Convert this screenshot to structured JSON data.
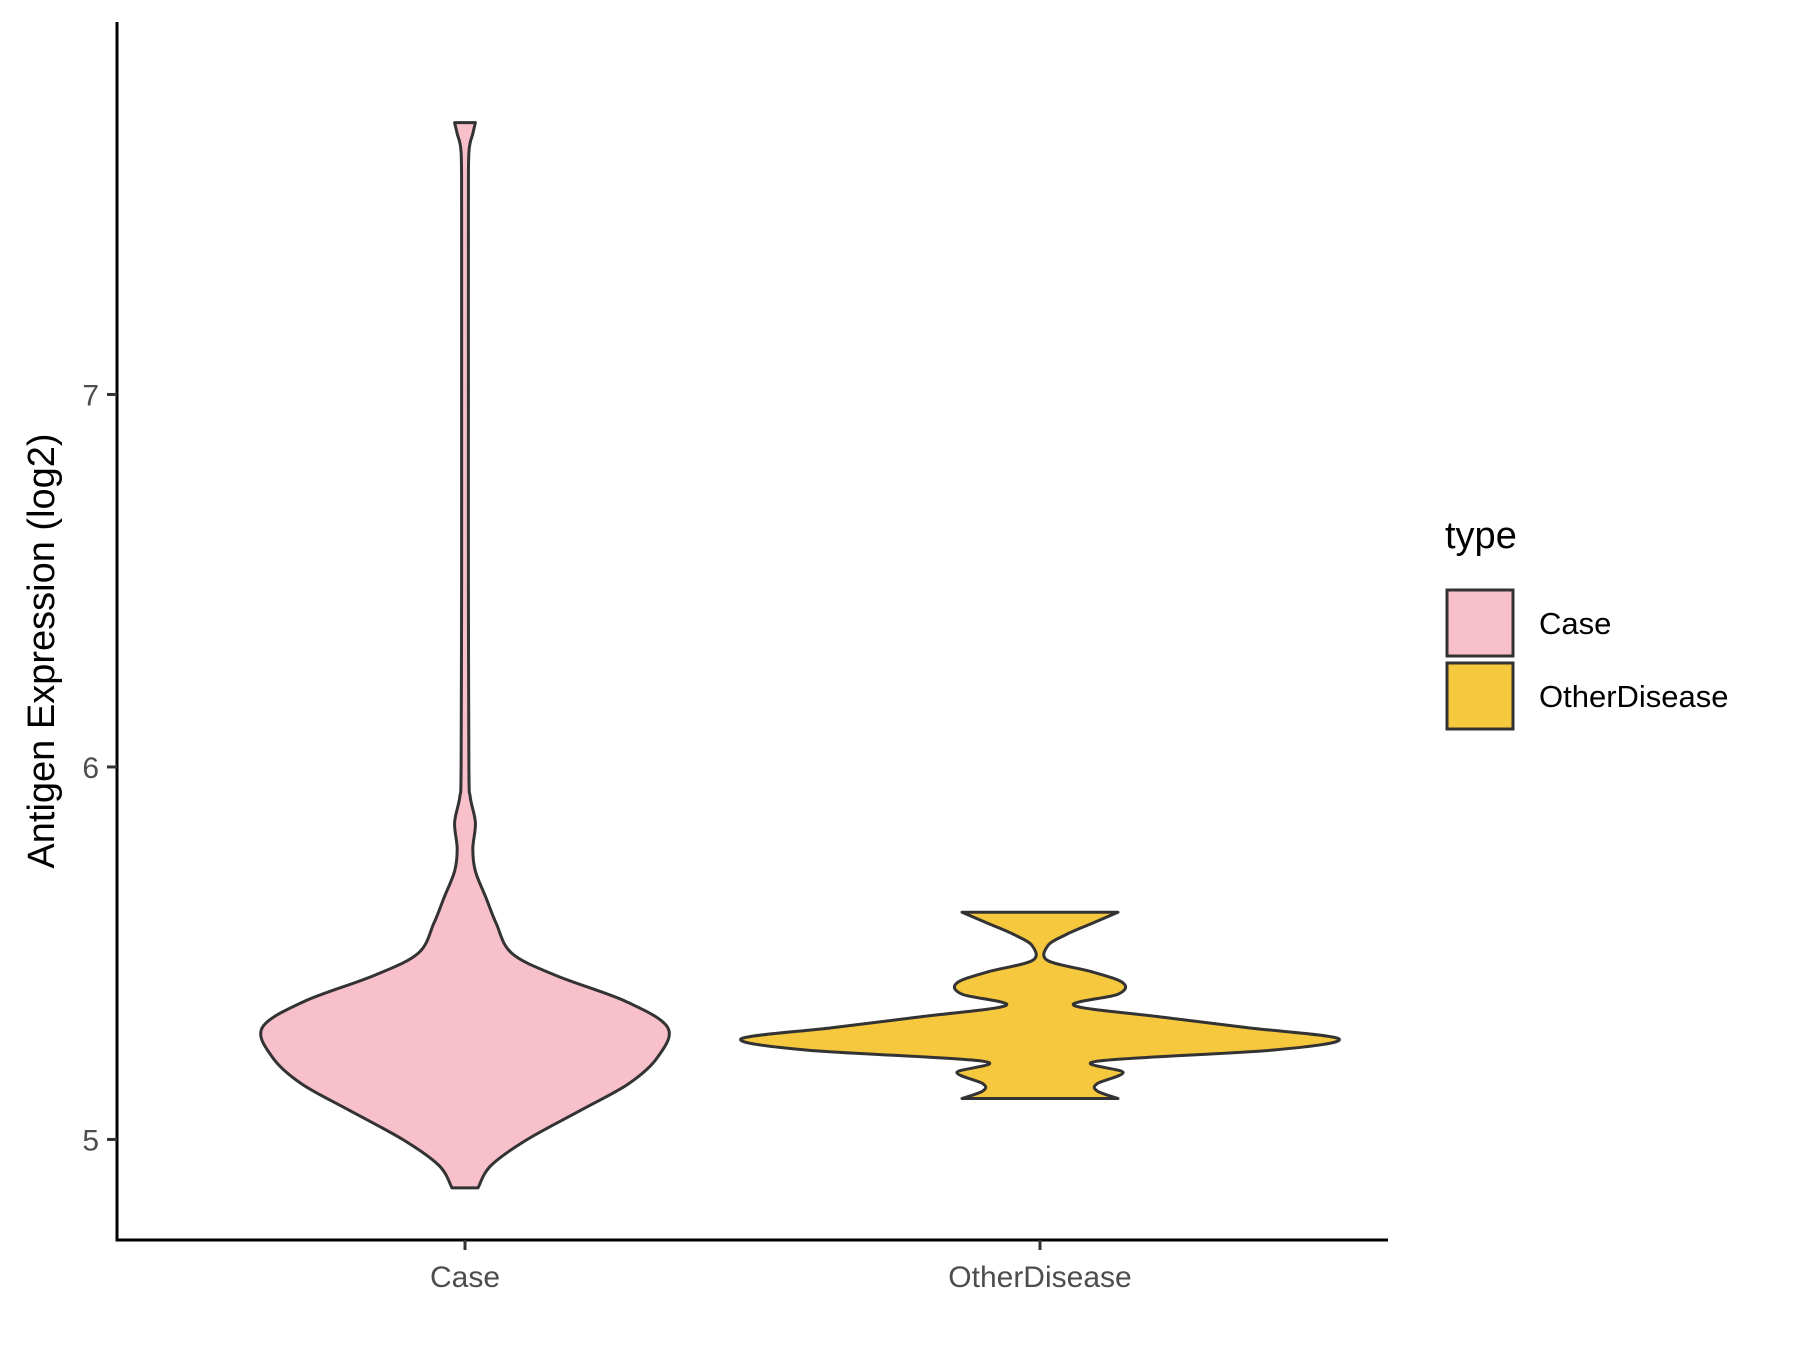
{
  "chart_data": {
    "type": "violin",
    "title": "",
    "xlabel": "",
    "ylabel": "Antigen Expression (log2)",
    "ylim": [
      4.73,
      8.0
    ],
    "yticks": [
      5,
      6,
      7
    ],
    "categories": [
      "Case",
      "OtherDisease"
    ],
    "colors": {
      "Case": "#f8c0cb",
      "OtherDisease": "#f6c83e",
      "outline": "#333333"
    },
    "legend": {
      "title": "type",
      "position": "right",
      "entries": [
        "Case",
        "OtherDisease"
      ]
    },
    "series": [
      {
        "category": "Case",
        "min": 4.87,
        "max": 7.73,
        "density": [
          [
            4.87,
            0.05
          ],
          [
            4.93,
            0.1
          ],
          [
            5.0,
            0.24
          ],
          [
            5.08,
            0.45
          ],
          [
            5.15,
            0.63
          ],
          [
            5.22,
            0.74
          ],
          [
            5.3,
            0.78
          ],
          [
            5.37,
            0.62
          ],
          [
            5.44,
            0.35
          ],
          [
            5.5,
            0.18
          ],
          [
            5.58,
            0.12
          ],
          [
            5.65,
            0.08
          ],
          [
            5.72,
            0.04
          ],
          [
            5.78,
            0.03
          ],
          [
            5.85,
            0.04
          ],
          [
            5.92,
            0.02
          ],
          [
            6.0,
            0.015
          ],
          [
            6.5,
            0.013
          ],
          [
            7.0,
            0.013
          ],
          [
            7.5,
            0.013
          ],
          [
            7.65,
            0.015
          ],
          [
            7.7,
            0.03
          ],
          [
            7.73,
            0.04
          ]
        ]
      },
      {
        "category": "OtherDisease",
        "min": 5.11,
        "max": 5.61,
        "density": [
          [
            5.11,
            0.3
          ],
          [
            5.13,
            0.22
          ],
          [
            5.15,
            0.22
          ],
          [
            5.18,
            0.32
          ],
          [
            5.21,
            0.22
          ],
          [
            5.24,
            0.9
          ],
          [
            5.27,
            1.15
          ],
          [
            5.3,
            0.8
          ],
          [
            5.33,
            0.45
          ],
          [
            5.36,
            0.13
          ],
          [
            5.39,
            0.3
          ],
          [
            5.42,
            0.32
          ],
          [
            5.45,
            0.2
          ],
          [
            5.48,
            0.03
          ],
          [
            5.52,
            0.03
          ],
          [
            5.55,
            0.1
          ],
          [
            5.58,
            0.2
          ],
          [
            5.61,
            0.3
          ]
        ]
      }
    ]
  }
}
